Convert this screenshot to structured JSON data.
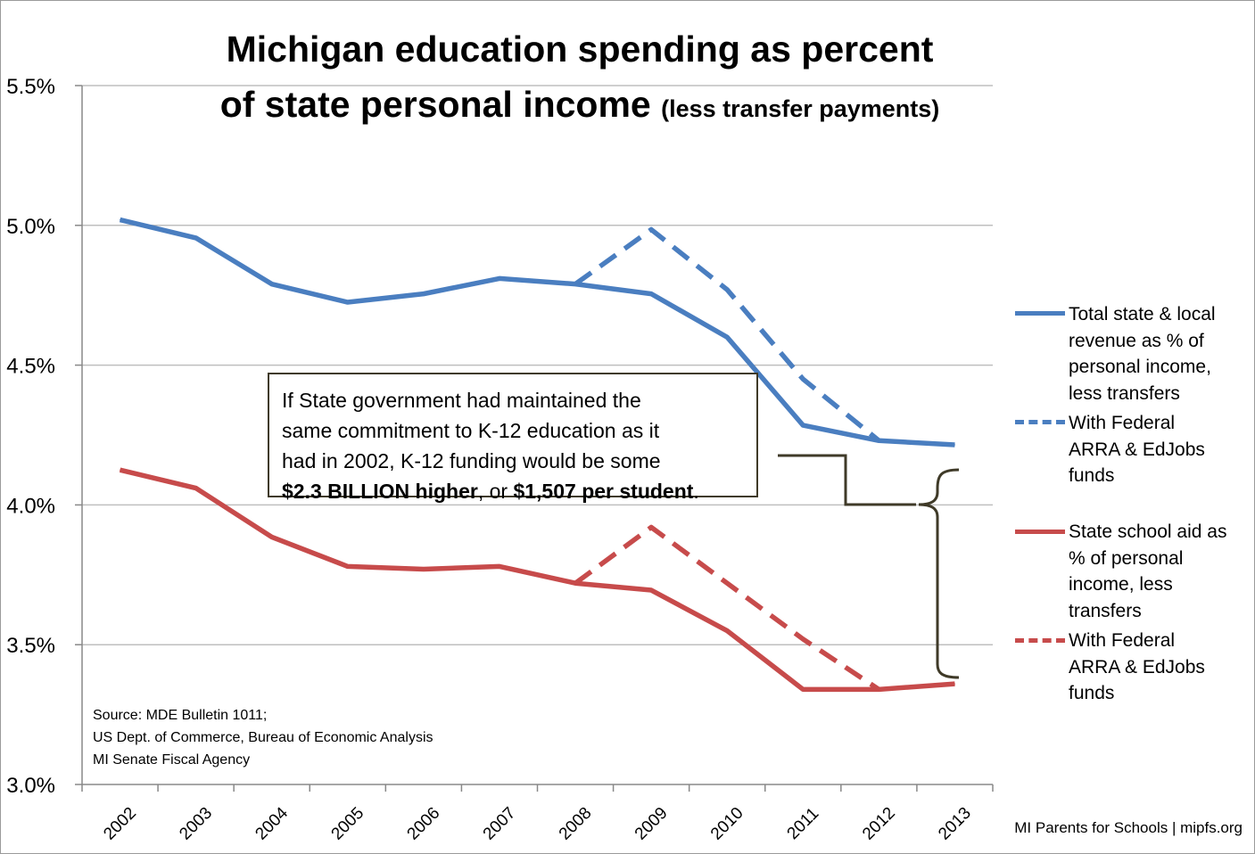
{
  "title": {
    "line1": "Michigan education spending as percent",
    "line2_main": "of state personal income",
    "line2_sub": "(less transfer payments)"
  },
  "annotation": {
    "line1": "If State government had maintained the",
    "line2": "same commitment to K-12 education as it",
    "line3": "had in 2002, K-12 funding would be some",
    "bold1": "$2.3 BILLION higher",
    "mid": ", or ",
    "bold2": "$1,507 per student",
    "end": "."
  },
  "source": {
    "line1": "Source: MDE Bulletin 1011;",
    "line2": "US Dept. of Commerce, Bureau of Economic Analysis",
    "line3": "MI Senate Fiscal Agency"
  },
  "credit": "MI Parents for Schools | mipfs.org",
  "legend": [
    {
      "lines": [
        "Total state & local",
        "revenue as % of",
        "personal income,",
        "less transfers"
      ]
    },
    {
      "lines": [
        "With Federal",
        "ARRA & EdJobs",
        "funds"
      ]
    },
    {
      "lines": [
        "State school aid as",
        "% of personal",
        "income, less",
        "transfers"
      ]
    },
    {
      "lines": [
        "With Federal",
        "ARRA & EdJobs",
        "funds"
      ]
    }
  ],
  "colors": {
    "blue": "#4a7ec0",
    "red": "#c74b4b",
    "grid": "#bfbfbf",
    "bracket": "#3f3a28"
  },
  "chart_data": {
    "type": "line",
    "categories": [
      "2002",
      "2003",
      "2004",
      "2005",
      "2006",
      "2007",
      "2008",
      "2009",
      "2010",
      "2011",
      "2012",
      "2013"
    ],
    "ylim": [
      3.0,
      5.5
    ],
    "yticks": [
      "3.0%",
      "3.5%",
      "4.0%",
      "4.5%",
      "5.0%",
      "5.5%"
    ],
    "ytick_values": [
      3.0,
      3.5,
      4.0,
      4.5,
      5.0,
      5.5
    ],
    "series": [
      {
        "name": "Total state & local revenue as % of personal income, less transfers",
        "style": "solid",
        "color": "blue",
        "values": [
          5.02,
          4.955,
          4.79,
          4.725,
          4.755,
          4.81,
          4.79,
          4.755,
          4.6,
          4.285,
          4.23,
          4.215
        ]
      },
      {
        "name": "With Federal ARRA & EdJobs funds",
        "style": "dashed",
        "color": "blue",
        "values": [
          null,
          null,
          null,
          null,
          null,
          null,
          4.79,
          4.985,
          4.77,
          4.45,
          4.23,
          null
        ]
      },
      {
        "name": "State school aid as % of personal income, less transfers",
        "style": "solid",
        "color": "red",
        "values": [
          4.125,
          4.06,
          3.885,
          3.78,
          3.77,
          3.78,
          3.72,
          3.695,
          3.55,
          3.34,
          3.34,
          3.36
        ]
      },
      {
        "name": "With Federal ARRA & EdJobs funds",
        "style": "dashed",
        "color": "red",
        "values": [
          null,
          null,
          null,
          null,
          null,
          null,
          3.72,
          3.92,
          3.72,
          3.52,
          3.34,
          null
        ]
      }
    ],
    "grid": true,
    "legend_position": "right"
  }
}
